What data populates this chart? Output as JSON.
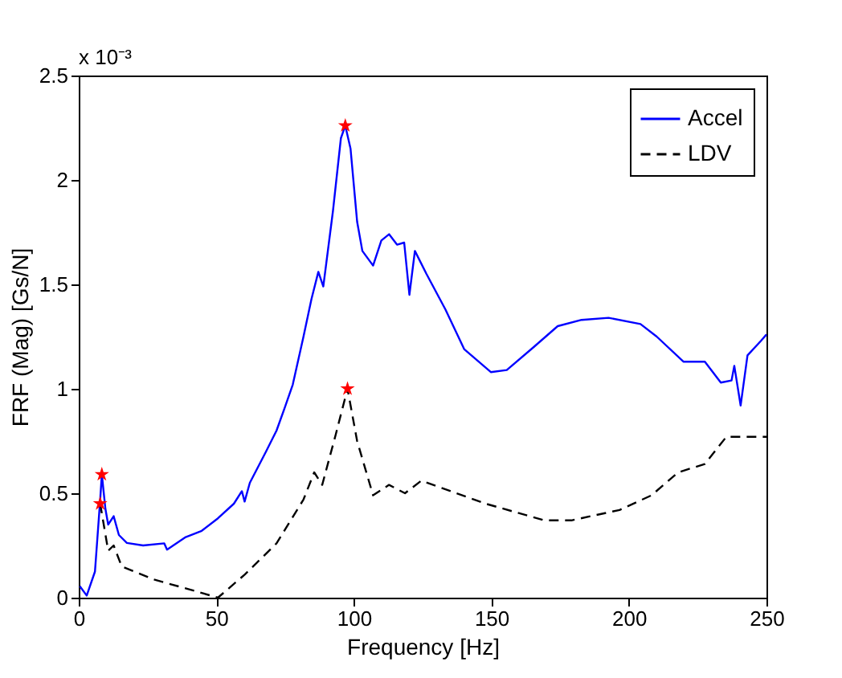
{
  "chart_data": {
    "type": "line",
    "xlabel": "Frequency [Hz]",
    "ylabel": "FRF (Mag) [Gs/N]",
    "annotations": [
      "x 10⁻³"
    ],
    "xlim": [
      0,
      250
    ],
    "xticks": [
      0,
      50,
      100,
      150,
      200,
      250
    ],
    "ylim": [
      0,
      2.5
    ],
    "yticks": [
      0,
      0.5,
      1,
      1.5,
      2,
      2.5
    ],
    "grid": false,
    "legend": "top right",
    "series": [
      {
        "name": "Accel",
        "color": "#0000ff",
        "line_style": "solid",
        "marker": "none",
        "x": [
          0.4,
          2.9,
          5.9,
          7.8,
          8.4,
          9.7,
          10.7,
          12.7,
          14.6,
          17.5,
          23.4,
          31.1,
          32.1,
          38.9,
          44.7,
          50.6,
          56.4,
          59.3,
          60.3,
          62.2,
          68.1,
          71.9,
          74.9,
          77.8,
          81.7,
          84.6,
          87.1,
          88.9,
          92.4,
          95.3,
          96.9,
          98.8,
          101.2,
          103.1,
          107,
          110,
          112.8,
          115.7,
          118.3,
          120.2,
          122.2,
          126.4,
          133.3,
          140.1,
          149.8,
          155.6,
          165.4,
          174.1,
          182.8,
          192.6,
          204.2,
          210.1,
          219.8,
          227.6,
          233.4,
          237.3,
          238.3,
          240.6,
          243.1,
          248,
          250
        ],
        "values": [
          0.055,
          0.01,
          0.125,
          0.47,
          0.59,
          0.425,
          0.35,
          0.39,
          0.3,
          0.262,
          0.25,
          0.26,
          0.23,
          0.29,
          0.32,
          0.38,
          0.45,
          0.51,
          0.46,
          0.55,
          0.7,
          0.8,
          0.91,
          1.02,
          1.25,
          1.43,
          1.56,
          1.49,
          1.85,
          2.2,
          2.26,
          2.15,
          1.8,
          1.66,
          1.59,
          1.71,
          1.74,
          1.69,
          1.7,
          1.45,
          1.66,
          1.55,
          1.38,
          1.19,
          1.08,
          1.09,
          1.2,
          1.3,
          1.33,
          1.34,
          1.31,
          1.25,
          1.13,
          1.13,
          1.03,
          1.04,
          1.11,
          0.92,
          1.16,
          1.23,
          1.26
        ]
      },
      {
        "name": "LDV",
        "color": "#000000",
        "line_style": "dashed",
        "marker": "none",
        "x": [
          7.8,
          10.7,
          12.7,
          15.6,
          27.3,
          40.9,
          50.6,
          60.3,
          71.9,
          81.7,
          85.6,
          88.5,
          93.4,
          97.7,
          101.2,
          107,
          112.8,
          118.6,
          124.5,
          147.9,
          169.3,
          179.1,
          196.6,
          208.2,
          217.9,
          227.6,
          235.4,
          243.1,
          250
        ],
        "values": [
          0.45,
          0.225,
          0.25,
          0.15,
          0.087,
          0.037,
          0.0,
          0.11,
          0.26,
          0.47,
          0.6,
          0.54,
          0.78,
          1.0,
          0.75,
          0.49,
          0.54,
          0.5,
          0.56,
          0.45,
          0.37,
          0.37,
          0.42,
          0.49,
          0.6,
          0.64,
          0.77,
          0.77,
          0.77
        ]
      },
      {
        "type": "scatter",
        "color": "#ff0000",
        "marker": "star",
        "x": [
          8.4,
          7.8,
          96.9,
          97.7
        ],
        "values": [
          0.59,
          0.45,
          2.26,
          1.0
        ]
      }
    ]
  }
}
